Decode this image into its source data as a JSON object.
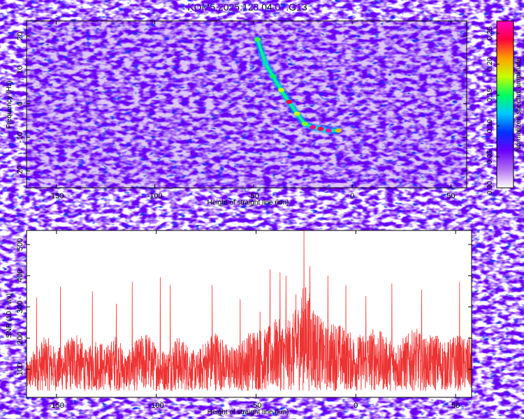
{
  "title": "KOM5.2025.128.04.07.G13",
  "chart_data": [
    {
      "type": "heatmap",
      "xlabel": "Height of straight line (km)",
      "ylabel": "Frequency (Hz)",
      "xlim": [
        -165,
        58
      ],
      "ylim": [
        -25,
        24.5
      ],
      "xticks": [
        "-150",
        "-100",
        "-50",
        "0",
        "50"
      ],
      "xtick_values": [
        -150,
        -100,
        -50,
        0,
        50
      ],
      "yticks": [
        "-20",
        "-10",
        "0",
        "10",
        "20"
      ],
      "ytick_values": [
        -20,
        -10,
        0,
        10,
        20
      ],
      "colorbar": {
        "label": "Normalized spectral amplitude",
        "range": [
          0,
          0.27
        ],
        "ticks": [
          "0.00",
          "0.05",
          "0.10",
          "0.15",
          "0.20",
          "0.25"
        ],
        "tick_values": [
          0,
          0.05,
          0.1,
          0.15,
          0.2,
          0.25
        ],
        "colors": [
          "#ffffff",
          "#b070f0",
          "#6a00ff",
          "#0030ff",
          "#00c8ff",
          "#00ff60",
          "#c8ff00",
          "#ffa000",
          "#ff0040",
          "#ff00c0"
        ]
      },
      "signal_track": [
        {
          "x": -48,
          "y": 19,
          "amplitude": 0.16
        },
        {
          "x": -44,
          "y": 12,
          "amplitude": 0.13
        },
        {
          "x": -40,
          "y": 8,
          "amplitude": 0.15
        },
        {
          "x": -36,
          "y": 4,
          "amplitude": 0.18
        },
        {
          "x": -32,
          "y": 0.5,
          "amplitude": 0.24
        },
        {
          "x": -28,
          "y": -3,
          "amplitude": 0.18
        },
        {
          "x": -24,
          "y": -6,
          "amplitude": 0.17
        },
        {
          "x": -20,
          "y": -7,
          "amplitude": 0.26
        },
        {
          "x": -16,
          "y": -7.5,
          "amplitude": 0.25
        },
        {
          "x": -12,
          "y": -8,
          "amplitude": 0.27
        },
        {
          "x": -7,
          "y": -8,
          "amplitude": 0.2
        }
      ]
    },
    {
      "type": "line",
      "xlabel": "Height of straight line (km)",
      "ylabel": "SNR (10 * v/v)",
      "xlim": [
        -165,
        58
      ],
      "ylim": [
        10,
        545
      ],
      "xticks": [
        "-150",
        "-100",
        "-50",
        "0",
        "50"
      ],
      "xtick_values": [
        -150,
        -100,
        -50,
        0,
        50
      ],
      "yticks": [
        "100",
        "200",
        "300",
        "400",
        "500"
      ],
      "ytick_values": [
        100,
        200,
        300,
        400,
        500
      ],
      "color": "#ee3333",
      "series": [
        {
          "points": [
            [
              -165,
              120
            ],
            [
              -160,
              180
            ],
            [
              -155,
              210
            ],
            [
              -150,
              165
            ],
            [
              -145,
              190
            ],
            [
              -140,
              230
            ],
            [
              -135,
              160
            ],
            [
              -130,
              205
            ],
            [
              -125,
              175
            ],
            [
              -120,
              215
            ],
            [
              -115,
              150
            ],
            [
              -110,
              195
            ],
            [
              -105,
              225
            ],
            [
              -100,
              180
            ],
            [
              -95,
              160
            ],
            [
              -90,
              210
            ],
            [
              -85,
              190
            ],
            [
              -80,
              150
            ],
            [
              -75,
              200
            ],
            [
              -70,
              230
            ],
            [
              -65,
              185
            ],
            [
              -60,
              170
            ],
            [
              -55,
              215
            ],
            [
              -50,
              240
            ],
            [
              -45,
              230
            ],
            [
              -40,
              265
            ],
            [
              -35,
              250
            ],
            [
              -30,
              295
            ],
            [
              -27,
              360
            ],
            [
              -25,
              380
            ],
            [
              -22,
              330
            ],
            [
              -18,
              270
            ],
            [
              -15,
              240
            ],
            [
              -10,
              260
            ],
            [
              -5,
              230
            ],
            [
              0,
              210
            ],
            [
              5,
              220
            ],
            [
              10,
              240
            ],
            [
              15,
              205
            ],
            [
              20,
              190
            ],
            [
              25,
              210
            ],
            [
              30,
              235
            ],
            [
              35,
              200
            ],
            [
              40,
              220
            ],
            [
              45,
              185
            ],
            [
              50,
              215
            ],
            [
              55,
              200
            ],
            [
              58,
              205
            ]
          ],
          "peaks": [
            [
              -160,
              330
            ],
            [
              -148,
              365
            ],
            [
              -132,
              350
            ],
            [
              -120,
              310
            ],
            [
              -112,
              380
            ],
            [
              -98,
              395
            ],
            [
              -93,
              370
            ],
            [
              -72,
              370
            ],
            [
              -58,
              325
            ],
            [
              -48,
              285
            ],
            [
              -43,
              420
            ],
            [
              -38,
              410
            ],
            [
              -35,
              400
            ],
            [
              -30,
              340
            ],
            [
              -26,
              545
            ],
            [
              -23,
              430
            ],
            [
              -14,
              400
            ],
            [
              -5,
              370
            ],
            [
              5,
              335
            ],
            [
              18,
              375
            ],
            [
              33,
              355
            ],
            [
              52,
              380
            ]
          ]
        }
      ]
    }
  ]
}
